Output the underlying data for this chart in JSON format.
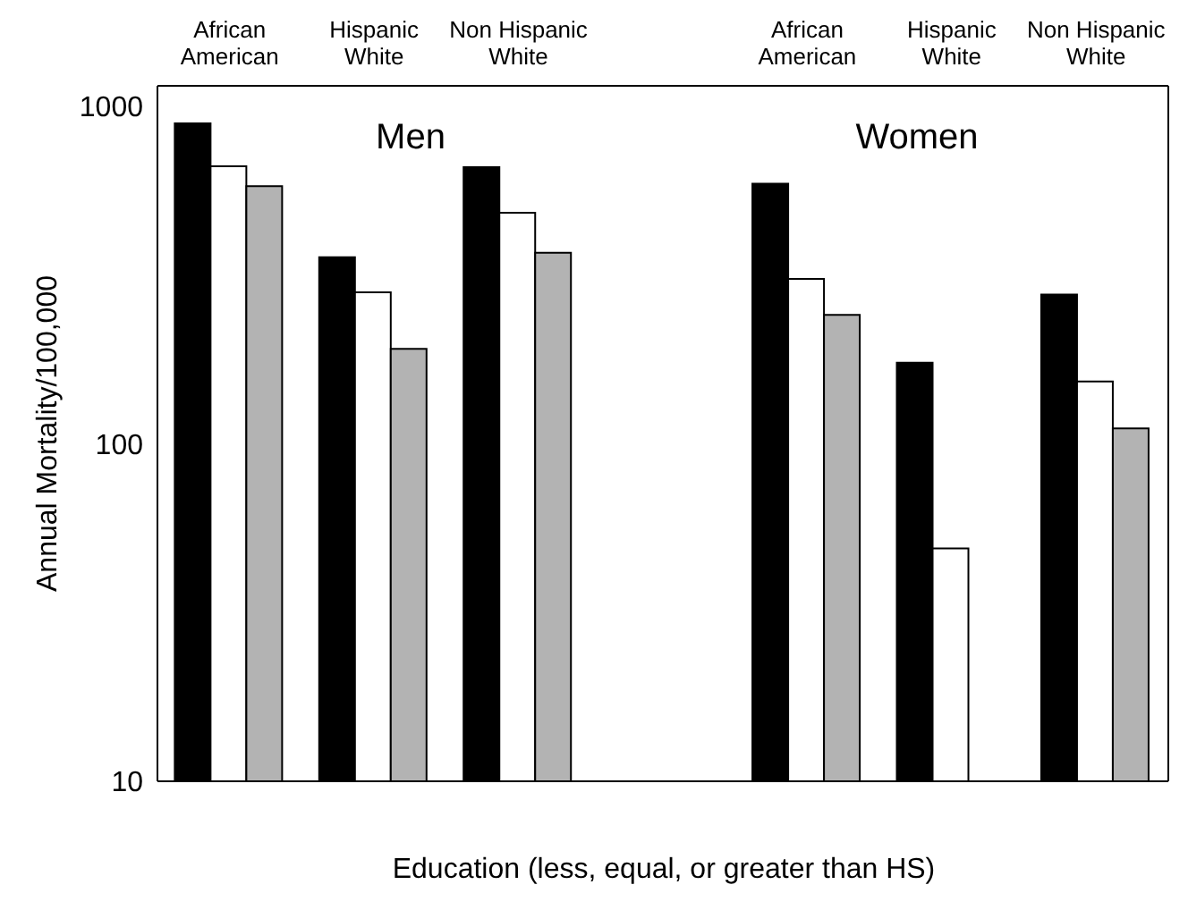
{
  "chart_data": {
    "type": "bar",
    "xlabel": "Education (less, equal, or greater than HS)",
    "ylabel": "Annual Mortality/100,000",
    "categories": [
      "African American",
      "Hispanic White",
      "Non Hispanic White",
      null,
      "African American",
      "Hispanic White",
      "Non Hispanic White"
    ],
    "series": [
      {
        "color": "#000000",
        "values": [
          890,
          357,
          660,
          null,
          590,
          174,
          277
        ]
      },
      {
        "color": "#ffffff",
        "values": [
          664,
          281,
          484,
          null,
          308,
          49,
          153
        ]
      },
      {
        "color": "#b3b3b3",
        "values": [
          580,
          191,
          368,
          null,
          241,
          null,
          111
        ]
      }
    ],
    "annotations": [
      "Men",
      "Women"
    ],
    "log": "y",
    "ylim": [
      10,
      1150
    ],
    "yticks": [
      10,
      100,
      1000
    ]
  }
}
